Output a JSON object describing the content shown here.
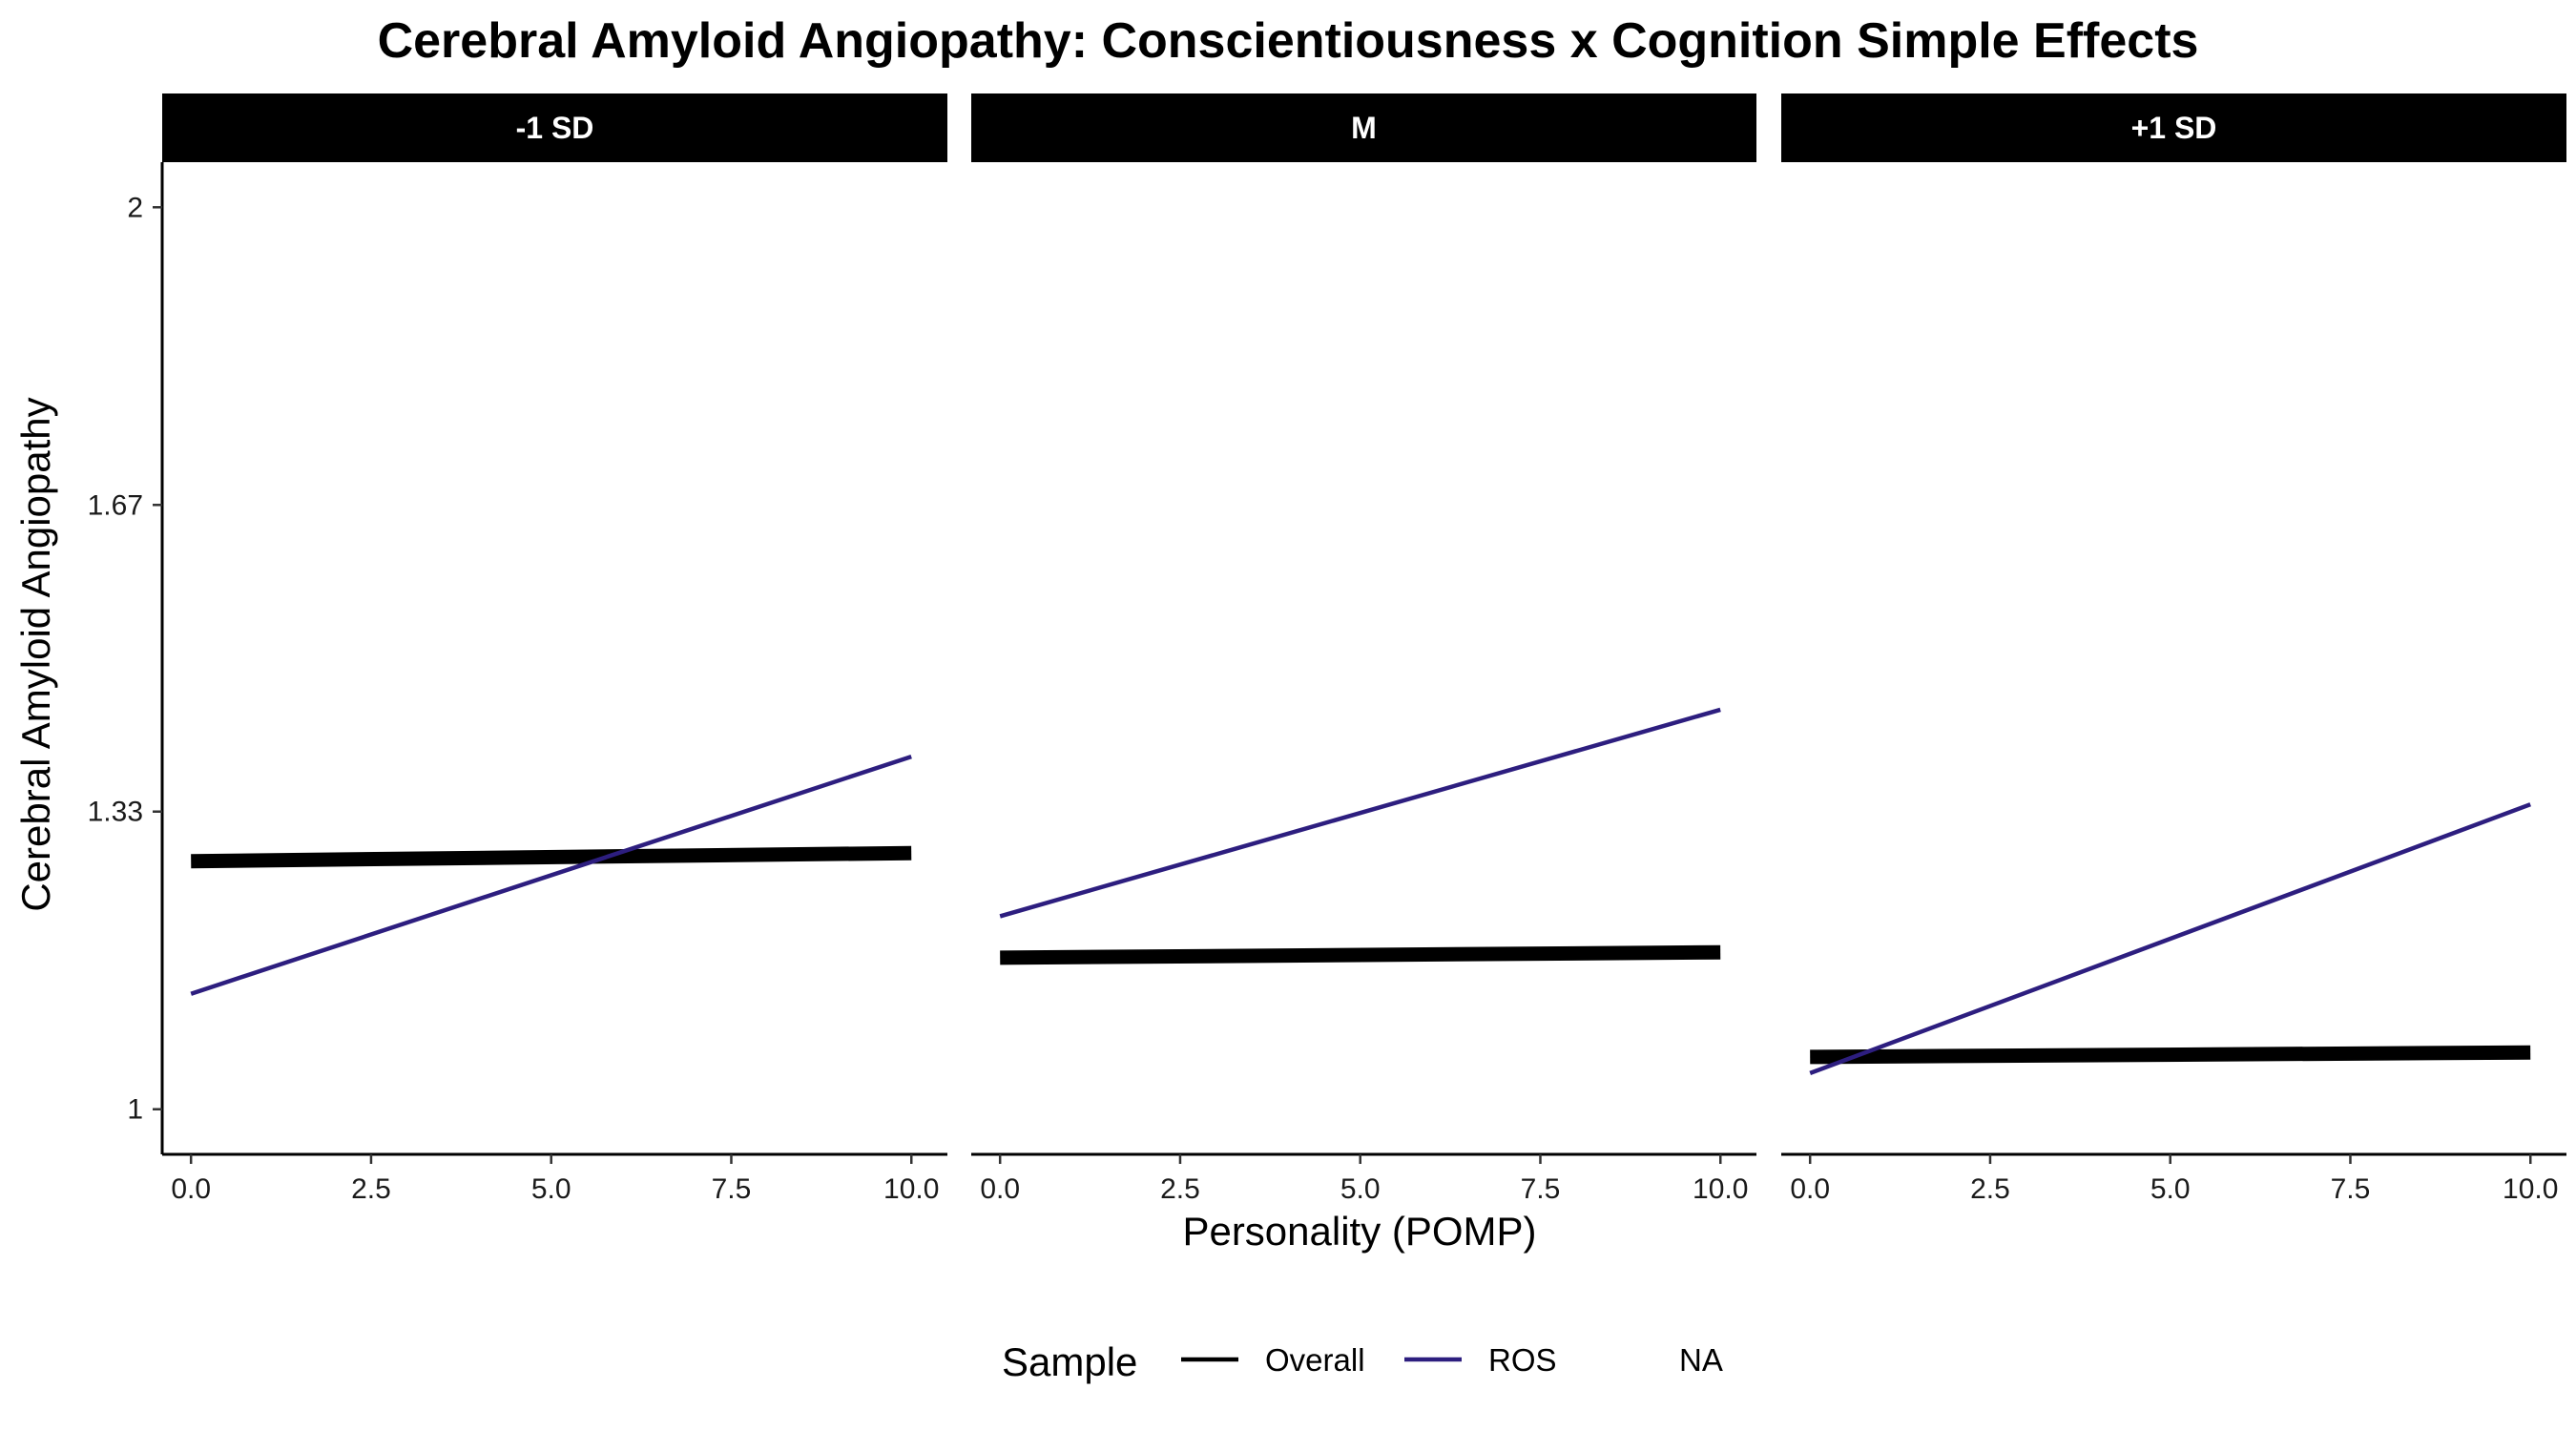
{
  "chart_data": {
    "type": "line",
    "title": "Cerebral Amyloid Angiopathy: Conscientiousness x Cognition Simple Effects",
    "xlabel": "Personality (POMP)",
    "ylabel": "Cerebral Amyloid Angiopathy",
    "xlim": [
      -0.4,
      10.5
    ],
    "ylim": [
      0.95,
      2.05
    ],
    "x_ticks": [
      0,
      2.5,
      5,
      7.5,
      10
    ],
    "x_tick_labels": [
      "0.0",
      "2.5",
      "5.0",
      "7.5",
      "10.0"
    ],
    "y_ticks": [
      1,
      1.33,
      1.67,
      2
    ],
    "y_tick_labels": [
      "1",
      "1.33",
      "1.67",
      "2"
    ],
    "grid": false,
    "legend": {
      "title": "Sample",
      "position": "bottom",
      "entries": [
        {
          "label": "Overall",
          "color": "#000000"
        },
        {
          "label": "ROS",
          "color": "#2d1e7f"
        },
        {
          "label": "NA",
          "color": null
        }
      ]
    },
    "panels": [
      {
        "label": "-1 SD",
        "series": [
          {
            "name": "Overall",
            "color": "#000000",
            "x": [
              0,
              10
            ],
            "y": [
              1.275,
              1.284
            ]
          },
          {
            "name": "ROS",
            "color": "#2d1e7f",
            "x": [
              0,
              10
            ],
            "y": [
              1.128,
              1.391
            ]
          }
        ]
      },
      {
        "label": "M",
        "series": [
          {
            "name": "Overall",
            "color": "#000000",
            "x": [
              0,
              10
            ],
            "y": [
              1.168,
              1.174
            ]
          },
          {
            "name": "ROS",
            "color": "#2d1e7f",
            "x": [
              0,
              10
            ],
            "y": [
              1.214,
              1.443
            ]
          }
        ]
      },
      {
        "label": "+1 SD",
        "series": [
          {
            "name": "Overall",
            "color": "#000000",
            "x": [
              0,
              10
            ],
            "y": [
              1.058,
              1.063
            ]
          },
          {
            "name": "ROS",
            "color": "#2d1e7f",
            "x": [
              0,
              10
            ],
            "y": [
              1.04,
              1.338
            ]
          }
        ]
      }
    ]
  }
}
